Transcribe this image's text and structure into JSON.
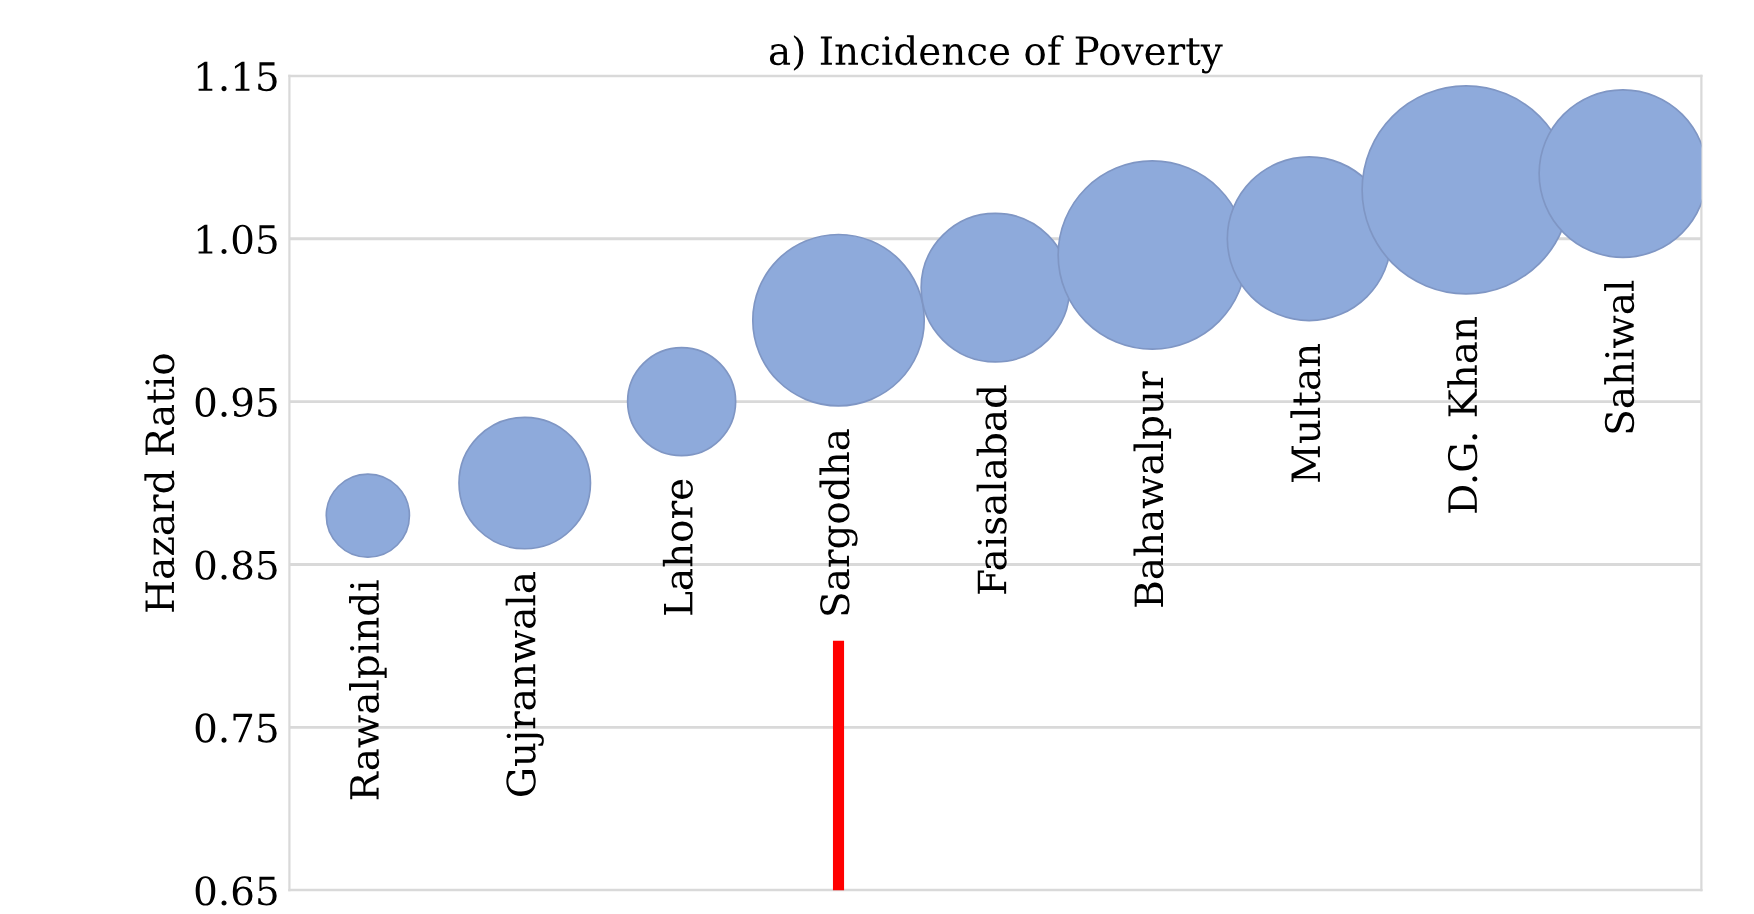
{
  "chart_data": {
    "type": "bubble",
    "title": "a) Incidence of Poverty",
    "ylabel": "Hazard Ratio",
    "categories": [
      "Rawalpindi",
      "Gujranwala",
      "Lahore",
      "Sargodha",
      "Faisalabad",
      "Bahawalpur",
      "Multan",
      "D.G. Khan",
      "Sahiwal"
    ],
    "series": [
      {
        "color": "#8eaadb",
        "values": [
          0.88,
          0.9,
          0.95,
          1.0,
          1.02,
          1.04,
          1.05,
          1.08,
          1.09
        ],
        "sizes": [
          0.16,
          0.4,
          0.27,
          0.68,
          0.51,
          0.82,
          0.62,
          1,
          0.65
        ]
      }
    ],
    "ylim": [
      0.65,
      1.15
    ],
    "yticks": [
      0.65,
      0.75,
      0.85,
      0.95,
      1.05,
      1.15
    ],
    "grid": "y",
    "ref_lines": [
      {
        "axis": "x",
        "value": "Sargodha",
        "color": "#ff0000"
      }
    ]
  }
}
